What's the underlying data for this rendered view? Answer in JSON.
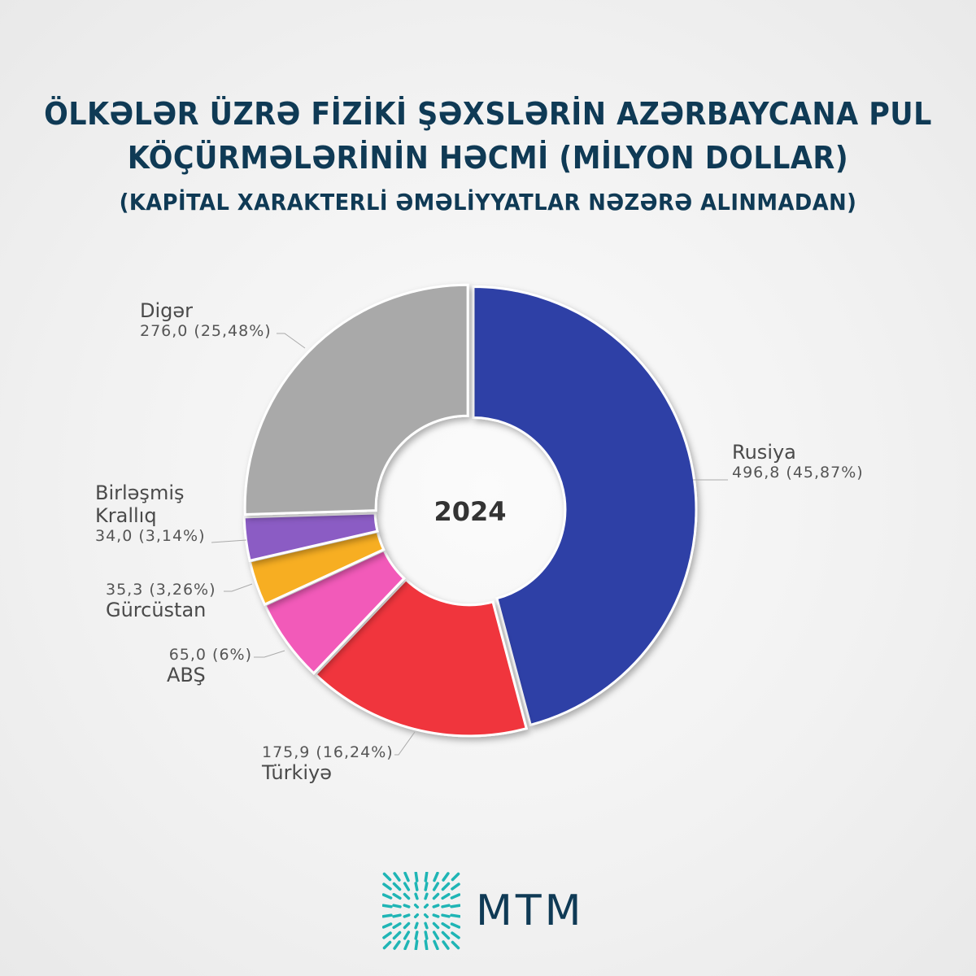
{
  "title": {
    "line1": "ÖLKƏLƏR ÜZRƏ FİZİKİ ŞƏXSLƏRİN AZƏRBAYCANA PUL",
    "line2": "KÖÇÜRMƏLƏRİNİN HƏCMİ (MİLYON DOLLAR)",
    "line3": "(KAPİTAL XARAKTERLİ ƏMƏLİYYATLAR NƏZƏRƏ ALINMADAN)"
  },
  "chart_data": {
    "type": "pie",
    "subtype": "donut",
    "center_label": "2024",
    "unit": "million USD",
    "slices": [
      {
        "label": "Rusiya",
        "value": 496.8,
        "percent": 45.87,
        "value_text": "496,8 (45,87%)",
        "color": "#2f3fa6"
      },
      {
        "label": "Türkiyə",
        "value": 175.9,
        "percent": 16.24,
        "value_text": "175,9 (16,24%)",
        "color": "#f0343c"
      },
      {
        "label": "ABŞ",
        "value": 65.0,
        "percent": 6,
        "value_text": "65,0 (6%)",
        "color": "#f25ab9"
      },
      {
        "label": "Gürcüstan",
        "value": 35.3,
        "percent": 3.26,
        "value_text": "35,3 (3,26%)",
        "color": "#f7ae22"
      },
      {
        "label": "Birləşmiş Krallıq",
        "value": 34.0,
        "percent": 3.14,
        "value_text": "34,0 (3,14%)",
        "color": "#8b5cc4"
      },
      {
        "label": "Digər",
        "value": 276.0,
        "percent": 25.48,
        "value_text": "276,0 (25,48%)",
        "color": "#a9a9a9"
      }
    ]
  },
  "labels": {
    "rusiya": "Rusiya",
    "turkiye": "Türkiyə",
    "abs": "ABŞ",
    "gurcustan": "Gürcüstan",
    "bk_line1": "Birləşmiş",
    "bk_line2": "Krallıq",
    "diger": "Digər"
  },
  "brand": {
    "name": "MTM"
  }
}
